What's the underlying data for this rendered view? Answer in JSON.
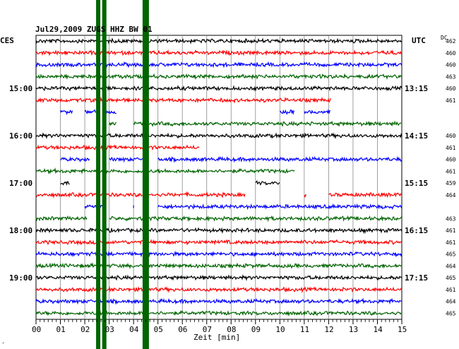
{
  "chart_data": {
    "type": "line",
    "title": "Jul29,2009   ZUGS HHZ BW 01",
    "left_corner_label": "CES",
    "right_corner_label": "UTC",
    "dc_header": "DC",
    "xlabel": "Zeit [min]",
    "x_ticks": [
      "00",
      "01",
      "02",
      "03",
      "04",
      "05",
      "06",
      "07",
      "08",
      "09",
      "10",
      "11",
      "12",
      "13",
      "14",
      "15"
    ],
    "xlim": [
      0,
      15
    ],
    "left_time_labels": [
      {
        "label": "15:00",
        "row": 4
      },
      {
        "label": "16:00",
        "row": 8
      },
      {
        "label": "17:00",
        "row": 12
      },
      {
        "label": "18:00",
        "row": 16
      },
      {
        "label": "19:00",
        "row": 20
      }
    ],
    "right_time_labels": [
      {
        "label": "13:15",
        "row": 4
      },
      {
        "label": "14:15",
        "row": 8
      },
      {
        "label": "15:15",
        "row": 12
      },
      {
        "label": "16:15",
        "row": 16
      },
      {
        "label": "17:15",
        "row": 20
      }
    ],
    "row_colors": [
      "#000000",
      "#ff0000",
      "#0000ff",
      "#006400"
    ],
    "rows": [
      {
        "dc": "462",
        "segments": [
          [
            0,
            15
          ]
        ]
      },
      {
        "dc": "460",
        "segments": [
          [
            0,
            15
          ]
        ]
      },
      {
        "dc": "460",
        "segments": [
          [
            0,
            15
          ]
        ]
      },
      {
        "dc": "463",
        "segments": [
          [
            0,
            15
          ]
        ]
      },
      {
        "dc": "460",
        "segments": [
          [
            0,
            15
          ]
        ]
      },
      {
        "dc": "461",
        "segments": [
          [
            0,
            12.1
          ]
        ]
      },
      {
        "dc": "",
        "segments": [
          [
            1.0,
            1.5
          ],
          [
            2.0,
            2.5
          ],
          [
            2.8,
            3.3
          ],
          [
            10.0,
            10.6
          ],
          [
            11.0,
            12.1
          ]
        ]
      },
      {
        "dc": "",
        "segments": [
          [
            3.0,
            3.3
          ],
          [
            4.0,
            15
          ]
        ]
      },
      {
        "dc": "460",
        "segments": [
          [
            0,
            15
          ]
        ]
      },
      {
        "dc": "461",
        "segments": [
          [
            0,
            6.7
          ]
        ]
      },
      {
        "dc": "460",
        "segments": [
          [
            1.0,
            2.2
          ],
          [
            3.0,
            4.5
          ],
          [
            5.0,
            15
          ]
        ]
      },
      {
        "dc": "461",
        "segments": [
          [
            0,
            10.6
          ]
        ]
      },
      {
        "dc": "459",
        "segments": [
          [
            1.0,
            1.4
          ],
          [
            9.0,
            10.0
          ]
        ]
      },
      {
        "dc": "464",
        "segments": [
          [
            0,
            8.6
          ],
          [
            11.0,
            11.1
          ],
          [
            12.0,
            15
          ]
        ]
      },
      {
        "dc": "",
        "segments": [
          [
            2.0,
            2.8
          ],
          [
            4.0,
            4.0
          ],
          [
            5.0,
            15
          ]
        ]
      },
      {
        "dc": "463",
        "segments": [
          [
            0,
            2.1
          ],
          [
            3.0,
            15
          ]
        ]
      },
      {
        "dc": "461",
        "segments": [
          [
            0,
            15
          ]
        ]
      },
      {
        "dc": "461",
        "segments": [
          [
            0,
            15
          ]
        ]
      },
      {
        "dc": "465",
        "segments": [
          [
            0,
            15
          ]
        ]
      },
      {
        "dc": "464",
        "segments": [
          [
            0,
            15
          ]
        ]
      },
      {
        "dc": "465",
        "segments": [
          [
            0,
            15
          ]
        ]
      },
      {
        "dc": "461",
        "segments": [
          [
            0,
            15
          ]
        ]
      },
      {
        "dc": "464",
        "segments": [
          [
            0,
            15
          ]
        ]
      },
      {
        "dc": "465",
        "segments": [
          [
            0,
            15
          ]
        ]
      }
    ],
    "events": [
      {
        "x": 2.55,
        "color": "#006400"
      },
      {
        "x": 2.8,
        "color": "#006400"
      },
      {
        "x": 4.5,
        "color": "#006400"
      }
    ],
    "grid": true,
    "footer_mark": "."
  }
}
